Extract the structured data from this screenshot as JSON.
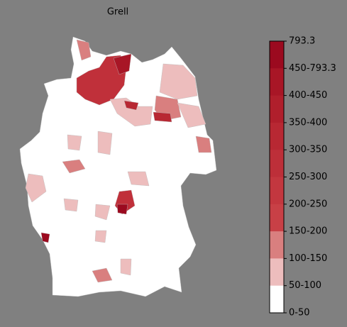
{
  "title": "Grell",
  "legend": {
    "labels": [
      "793.3",
      "450-793.3",
      "400-450",
      "350-400",
      "300-350",
      "250-300",
      "200-250",
      "150-200",
      "100-150",
      "50-100",
      "0-50"
    ],
    "colors": [
      "#9b0a1f",
      "#a81626",
      "#b01f2c",
      "#b82833",
      "#bd2f39",
      "#c3373f",
      "#c84046",
      "#d97f7f",
      "#edbdbd",
      "#ffffff"
    ]
  }
}
